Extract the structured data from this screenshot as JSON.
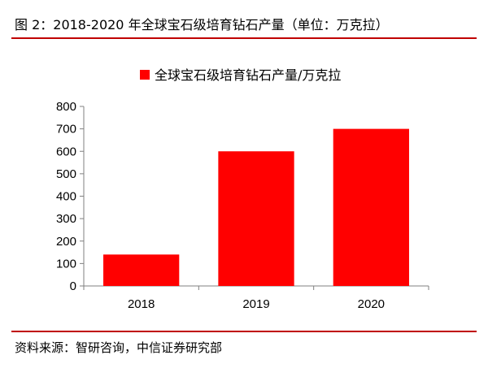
{
  "figure": {
    "title": "图 2：2018-2020 年全球宝石级培育钻石产量（单位：万克拉）",
    "source": "资料来源：智研咨询，中信证券研究部"
  },
  "chart_data": {
    "type": "bar",
    "title": "",
    "xlabel": "",
    "ylabel": "",
    "categories": [
      "2018",
      "2019",
      "2020"
    ],
    "series": [
      {
        "name": "全球宝石级培育钻石产量/万克拉",
        "values": [
          140,
          600,
          700
        ],
        "color": "#ff0000"
      }
    ],
    "ylim": [
      0,
      800
    ],
    "yticks": [
      0,
      100,
      200,
      300,
      400,
      500,
      600,
      700,
      800
    ],
    "grid": false,
    "legend_position": "top-center",
    "axis_color": "#808080"
  }
}
